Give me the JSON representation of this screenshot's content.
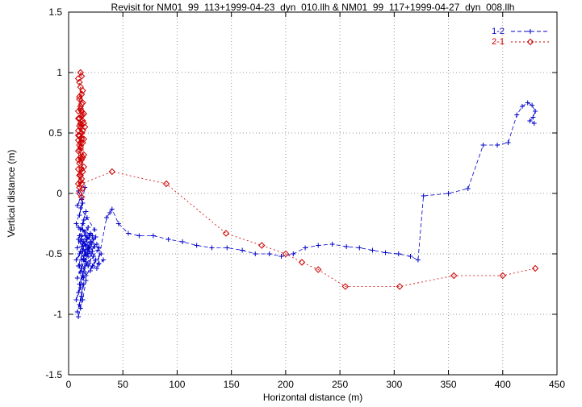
{
  "chart_data": {
    "type": "scatter",
    "title": "Revisit for NM01_99_113+1999-04-23_dyn_010.llh & NM01_99_117+1999-04-27_dyn_008.llh",
    "xlabel": "Horizontal distance (m)",
    "ylabel": "Vertical distance (m)",
    "xlim": [
      0,
      450
    ],
    "ylim": [
      -1.5,
      1.5
    ],
    "xticks": [
      0,
      50,
      100,
      150,
      200,
      250,
      300,
      350,
      400,
      450
    ],
    "xtick_labels": [
      "0",
      "50",
      "100",
      "150",
      "200",
      "250",
      "300",
      "350",
      "400",
      "450"
    ],
    "yticks": [
      -1.5,
      -1,
      -0.5,
      0,
      0.5,
      1,
      1.5
    ],
    "ytick_labels": [
      "-1.5",
      "-1",
      "-0.5",
      "0",
      "0.5",
      "1",
      "1.5"
    ],
    "grid": true,
    "grid_color": "#999999",
    "border_color": "#000000",
    "legend_position": "top-right",
    "series": [
      {
        "name": "1-2",
        "color": "#0000cd",
        "marker": "plus",
        "line_style": "dashed",
        "points": [
          [
            9,
            0.02
          ],
          [
            12,
            -0.05
          ],
          [
            8,
            -0.1
          ],
          [
            15,
            0.05
          ],
          [
            10,
            -0.18
          ],
          [
            13,
            -0.08
          ],
          [
            7,
            -0.25
          ],
          [
            11,
            -0.3
          ],
          [
            16,
            -0.15
          ],
          [
            9,
            -0.38
          ],
          [
            14,
            -0.22
          ],
          [
            8,
            -0.45
          ],
          [
            12,
            -0.35
          ],
          [
            18,
            -0.28
          ],
          [
            10,
            -0.5
          ],
          [
            15,
            -0.42
          ],
          [
            7,
            -0.55
          ],
          [
            13,
            -0.48
          ],
          [
            9,
            -0.6
          ],
          [
            17,
            -0.38
          ],
          [
            11,
            -0.65
          ],
          [
            14,
            -0.55
          ],
          [
            8,
            -0.7
          ],
          [
            12,
            -0.62
          ],
          [
            19,
            -0.45
          ],
          [
            10,
            -0.75
          ],
          [
            16,
            -0.58
          ],
          [
            9,
            -0.82
          ],
          [
            13,
            -0.68
          ],
          [
            7,
            -0.88
          ],
          [
            11,
            -0.78
          ],
          [
            15,
            -0.65
          ],
          [
            10,
            -0.92
          ],
          [
            12,
            -0.85
          ],
          [
            8,
            -0.98
          ],
          [
            14,
            -0.75
          ],
          [
            9,
            -1.02
          ],
          [
            11,
            -0.95
          ],
          [
            13,
            -0.88
          ],
          [
            16,
            -0.72
          ],
          [
            10,
            -0.6
          ],
          [
            18,
            -0.52
          ],
          [
            12,
            -0.44
          ],
          [
            20,
            -0.4
          ],
          [
            15,
            -0.32
          ],
          [
            9,
            -0.28
          ],
          [
            22,
            -0.35
          ],
          [
            13,
            -0.25
          ],
          [
            17,
            -0.2
          ],
          [
            11,
            -0.12
          ],
          [
            24,
            -0.3
          ],
          [
            14,
            -0.4
          ],
          [
            19,
            -0.48
          ],
          [
            12,
            -0.55
          ],
          [
            21,
            -0.42
          ],
          [
            16,
            -0.5
          ],
          [
            10,
            -0.35
          ],
          [
            23,
            -0.38
          ],
          [
            13,
            -0.3
          ],
          [
            18,
            -0.44
          ],
          [
            25,
            -0.36
          ],
          [
            15,
            -0.48
          ],
          [
            11,
            -0.4
          ],
          [
            20,
            -0.33
          ],
          [
            14,
            -0.52
          ],
          [
            26,
            -0.42
          ],
          [
            17,
            -0.46
          ],
          [
            12,
            -0.38
          ],
          [
            22,
            -0.48
          ],
          [
            16,
            -0.35
          ],
          [
            28,
            -0.45
          ],
          [
            13,
            -0.42
          ],
          [
            19,
            -0.36
          ],
          [
            24,
            -0.44
          ],
          [
            15,
            -0.55
          ],
          [
            11,
            -0.48
          ],
          [
            21,
            -0.5
          ],
          [
            17,
            -0.58
          ],
          [
            27,
            -0.47
          ],
          [
            14,
            -0.62
          ],
          [
            23,
            -0.52
          ],
          [
            18,
            -0.6
          ],
          [
            30,
            -0.5
          ],
          [
            16,
            -0.68
          ],
          [
            25,
            -0.55
          ],
          [
            20,
            -0.64
          ],
          [
            28,
            -0.58
          ],
          [
            22,
            -0.6
          ],
          [
            32,
            -0.55
          ],
          [
            26,
            -0.62
          ],
          [
            35,
            -0.2
          ],
          [
            38,
            -0.16
          ],
          [
            40,
            -0.13
          ],
          [
            46,
            -0.25
          ],
          [
            55,
            -0.33
          ],
          [
            65,
            -0.35
          ],
          [
            78,
            -0.35
          ],
          [
            92,
            -0.38
          ],
          [
            105,
            -0.4
          ],
          [
            118,
            -0.43
          ],
          [
            132,
            -0.45
          ],
          [
            146,
            -0.45
          ],
          [
            160,
            -0.47
          ],
          [
            172,
            -0.5
          ],
          [
            185,
            -0.5
          ],
          [
            196,
            -0.52
          ],
          [
            207,
            -0.5
          ],
          [
            218,
            -0.45
          ],
          [
            230,
            -0.43
          ],
          [
            243,
            -0.42
          ],
          [
            256,
            -0.44
          ],
          [
            268,
            -0.45
          ],
          [
            280,
            -0.47
          ],
          [
            292,
            -0.49
          ],
          [
            304,
            -0.5
          ],
          [
            315,
            -0.52
          ],
          [
            322,
            -0.55
          ],
          [
            327,
            -0.02
          ],
          [
            350,
            0.0
          ],
          [
            368,
            0.04
          ],
          [
            382,
            0.4
          ],
          [
            395,
            0.4
          ],
          [
            405,
            0.42
          ],
          [
            413,
            0.65
          ],
          [
            418,
            0.72
          ],
          [
            423,
            0.75
          ],
          [
            427,
            0.73
          ],
          [
            430,
            0.68
          ],
          [
            428,
            0.63
          ],
          [
            425,
            0.6
          ],
          [
            429,
            0.58
          ]
        ]
      },
      {
        "name": "2-1",
        "color": "#cd0000",
        "marker": "diamond",
        "line_style": "dotted",
        "points": [
          [
            10,
            0.05
          ],
          [
            12,
            0.12
          ],
          [
            9,
            0.2
          ],
          [
            11,
            0.3
          ],
          [
            13,
            0.18
          ],
          [
            10,
            0.4
          ],
          [
            12,
            0.5
          ],
          [
            9,
            0.35
          ],
          [
            11,
            0.55
          ],
          [
            14,
            0.45
          ],
          [
            10,
            0.62
          ],
          [
            12,
            0.68
          ],
          [
            9,
            0.52
          ],
          [
            11,
            0.72
          ],
          [
            13,
            0.6
          ],
          [
            10,
            0.78
          ],
          [
            12,
            0.82
          ],
          [
            9,
            0.68
          ],
          [
            11,
            0.88
          ],
          [
            13,
            0.75
          ],
          [
            10,
            0.92
          ],
          [
            12,
            0.97
          ],
          [
            11,
            1.0
          ],
          [
            9,
            0.95
          ],
          [
            13,
            0.85
          ],
          [
            10,
            0.8
          ],
          [
            12,
            0.74
          ],
          [
            14,
            0.66
          ],
          [
            11,
            0.58
          ],
          [
            9,
            0.48
          ],
          [
            13,
            0.42
          ],
          [
            10,
            0.36
          ],
          [
            12,
            0.28
          ],
          [
            14,
            0.22
          ],
          [
            11,
            0.15
          ],
          [
            9,
            0.08
          ],
          [
            13,
            0.04
          ],
          [
            10,
            0.0
          ],
          [
            12,
            -0.03
          ],
          [
            11,
            0.1
          ],
          [
            14,
            0.32
          ],
          [
            10,
            0.56
          ],
          [
            12,
            0.64
          ],
          [
            9,
            0.44
          ],
          [
            13,
            0.52
          ],
          [
            11,
            0.38
          ],
          [
            10,
            0.25
          ],
          [
            12,
            0.45
          ],
          [
            14,
            0.58
          ],
          [
            11,
            0.7
          ],
          [
            9,
            0.62
          ],
          [
            13,
            0.3
          ],
          [
            10,
            0.48
          ],
          [
            12,
            0.2
          ],
          [
            15,
            0.55
          ],
          [
            11,
            0.42
          ],
          [
            9,
            0.28
          ],
          [
            13,
            0.65
          ],
          [
            10,
            0.15
          ],
          [
            12,
            0.08
          ],
          [
            40,
            0.18
          ],
          [
            90,
            0.08
          ],
          [
            145,
            -0.33
          ],
          [
            178,
            -0.43
          ],
          [
            200,
            -0.5
          ],
          [
            215,
            -0.57
          ],
          [
            230,
            -0.63
          ],
          [
            255,
            -0.77
          ],
          [
            305,
            -0.77
          ],
          [
            355,
            -0.68
          ],
          [
            400,
            -0.68
          ],
          [
            430,
            -0.62
          ]
        ]
      }
    ]
  }
}
